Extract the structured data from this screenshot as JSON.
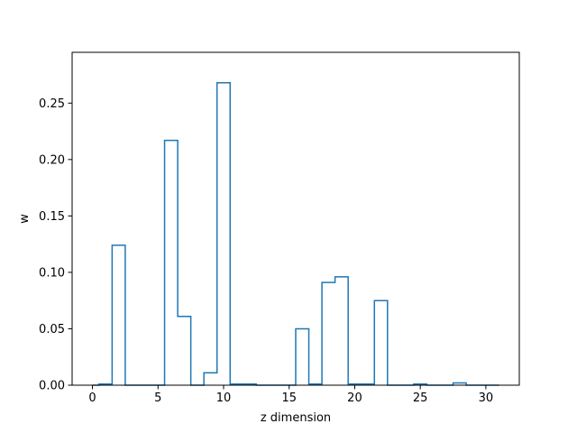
{
  "chart_data": {
    "type": "line",
    "drawstyle": "steps-mid",
    "xlabel": "z dimension",
    "ylabel": "w",
    "xlim": [
      -1.55,
      32.55
    ],
    "ylim": [
      0,
      0.295
    ],
    "xticks": [
      0,
      5,
      10,
      15,
      20,
      25,
      30
    ],
    "yticks": [
      0.0,
      0.05,
      0.1,
      0.15,
      0.2,
      0.25
    ],
    "xtick_labels": [
      "0",
      "5",
      "10",
      "15",
      "20",
      "25",
      "30"
    ],
    "ytick_labels": [
      "0.00",
      "0.05",
      "0.10",
      "0.15",
      "0.20",
      "0.25"
    ],
    "grid": false,
    "series": [
      {
        "color": "#1f77b4",
        "x": [
          0,
          1,
          2,
          3,
          4,
          5,
          6,
          7,
          8,
          9,
          10,
          11,
          12,
          13,
          14,
          15,
          16,
          17,
          18,
          19,
          20,
          21,
          22,
          23,
          24,
          25,
          26,
          27,
          28,
          29,
          30,
          31
        ],
        "y": [
          0.0,
          0.001,
          0.124,
          0.0,
          0.0,
          0.0,
          0.217,
          0.061,
          0.0,
          0.011,
          0.268,
          0.001,
          0.001,
          0.0,
          0.0,
          0.0,
          0.05,
          0.001,
          0.091,
          0.096,
          0.001,
          0.001,
          0.075,
          0.0,
          0.0,
          0.001,
          0.0,
          0.0,
          0.002,
          0.0,
          0.0,
          0.0
        ]
      }
    ]
  }
}
